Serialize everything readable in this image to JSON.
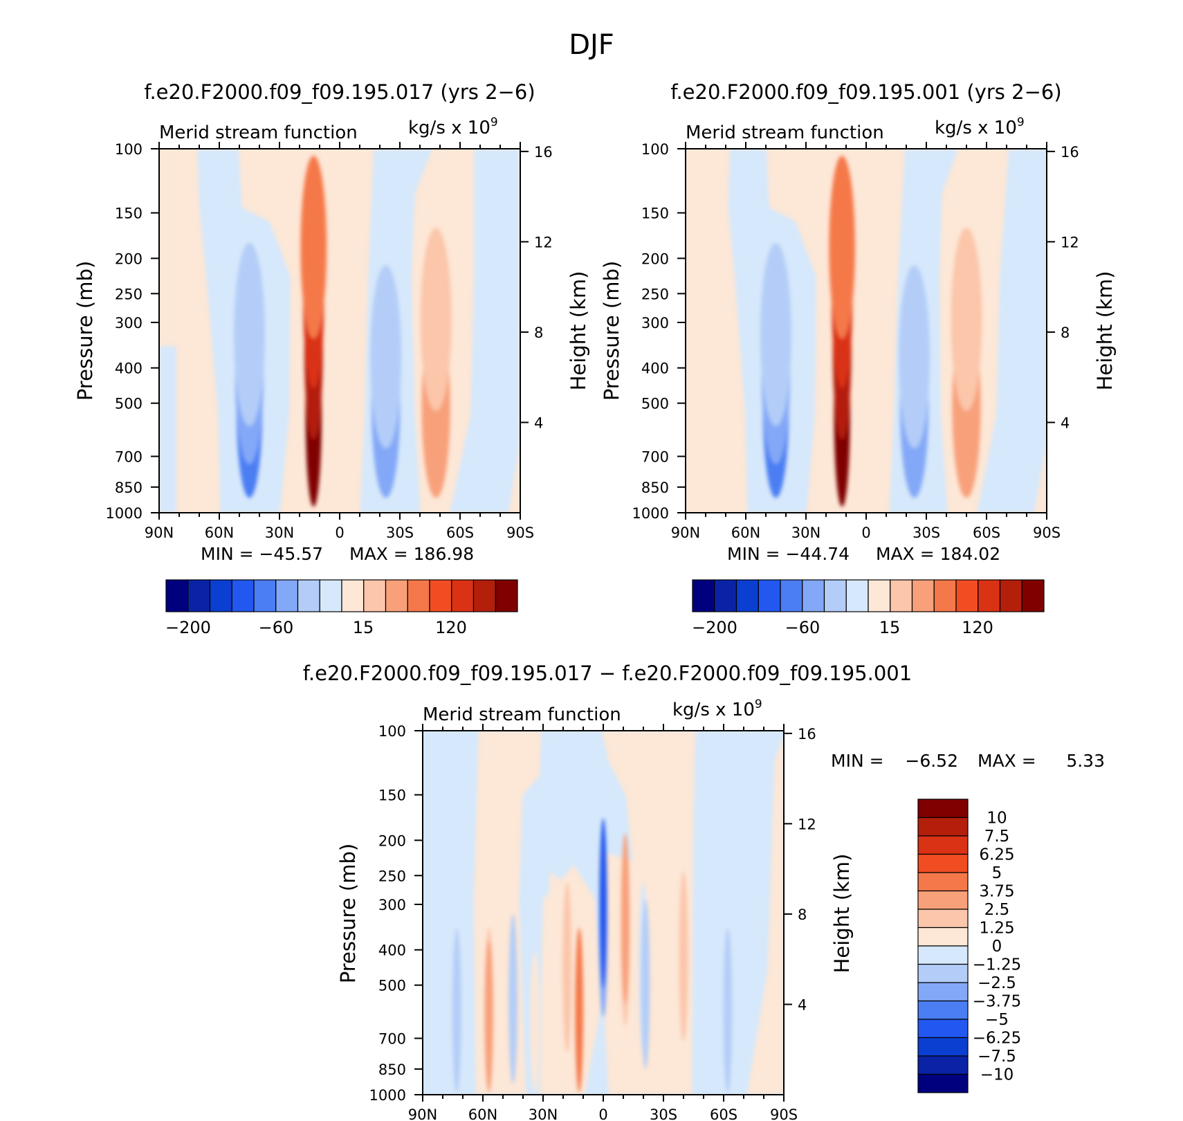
{
  "figure": {
    "title": "DJF"
  },
  "chart_data": [
    {
      "type": "heatmap",
      "panel": "left",
      "title": "f.e20.F2000.f09_f09.195.017 (yrs 2−6)",
      "subtitle": "Merid stream function",
      "units": "kg/s x 10",
      "units_exponent": "9",
      "xlabel": "",
      "ylabel": "Pressure (mb)",
      "y2label": "Height (km)",
      "x_ticks": [
        "90N",
        "60N",
        "30N",
        "0",
        "30S",
        "60S",
        "90S"
      ],
      "x_tick_values": [
        90,
        60,
        30,
        0,
        -30,
        -60,
        -90
      ],
      "y_ticks": [
        100,
        150,
        200,
        250,
        300,
        400,
        500,
        700,
        850,
        1000
      ],
      "y2_ticks": [
        16,
        12,
        8,
        4
      ],
      "ylim": [
        1000,
        100
      ],
      "xlim": [
        90,
        -90
      ],
      "yscale": "log",
      "min_label": "MIN = −45.57",
      "max_label": "MAX = 186.98",
      "min": -45.57,
      "max": 186.98,
      "colorbar_labels": [
        "−200",
        "−60",
        "15",
        "120"
      ],
      "cells": [
        {
          "lat": 45,
          "p": 520,
          "level": -4
        },
        {
          "lat": 45,
          "p": 420,
          "level": -3
        },
        {
          "lat": 45,
          "p": 330,
          "level": -2
        },
        {
          "lat": 13,
          "p": 550,
          "level": 8
        },
        {
          "lat": 13,
          "p": 360,
          "level": 7
        },
        {
          "lat": 13,
          "p": 260,
          "level": 6
        },
        {
          "lat": 13,
          "p": 190,
          "level": 4
        },
        {
          "lat": -23,
          "p": 520,
          "level": -3
        },
        {
          "lat": -23,
          "p": 380,
          "level": -2
        },
        {
          "lat": -48,
          "p": 520,
          "level": 3
        },
        {
          "lat": -48,
          "p": 300,
          "level": 2
        }
      ]
    },
    {
      "type": "heatmap",
      "panel": "right",
      "title": "f.e20.F2000.f09_f09.195.001 (yrs 2−6)",
      "subtitle": "Merid stream function",
      "units": "kg/s x 10",
      "units_exponent": "9",
      "xlabel": "",
      "ylabel": "Pressure (mb)",
      "y2label": "Height (km)",
      "x_ticks": [
        "90N",
        "60N",
        "30N",
        "0",
        "30S",
        "60S",
        "90S"
      ],
      "x_tick_values": [
        90,
        60,
        30,
        0,
        -30,
        -60,
        -90
      ],
      "y_ticks": [
        100,
        150,
        200,
        250,
        300,
        400,
        500,
        700,
        850,
        1000
      ],
      "y2_ticks": [
        16,
        12,
        8,
        4
      ],
      "ylim": [
        1000,
        100
      ],
      "xlim": [
        90,
        -90
      ],
      "yscale": "log",
      "min_label": "MIN = −44.74",
      "max_label": "MAX = 184.02",
      "min": -44.74,
      "max": 184.02,
      "colorbar_labels": [
        "−200",
        "−60",
        "15",
        "120"
      ],
      "cells": [
        {
          "lat": 45,
          "p": 520,
          "level": -4
        },
        {
          "lat": 45,
          "p": 420,
          "level": -3
        },
        {
          "lat": 45,
          "p": 330,
          "level": -2
        },
        {
          "lat": 12,
          "p": 550,
          "level": 8
        },
        {
          "lat": 12,
          "p": 360,
          "level": 7
        },
        {
          "lat": 12,
          "p": 260,
          "level": 6
        },
        {
          "lat": 12,
          "p": 190,
          "level": 4
        },
        {
          "lat": -24,
          "p": 520,
          "level": -3
        },
        {
          "lat": -24,
          "p": 380,
          "level": -2
        },
        {
          "lat": -50,
          "p": 520,
          "level": 3
        },
        {
          "lat": -50,
          "p": 300,
          "level": 2
        }
      ]
    },
    {
      "type": "heatmap",
      "panel": "difference",
      "title": "f.e20.F2000.f09_f09.195.017 − f.e20.F2000.f09_f09.195.001",
      "subtitle": "Merid stream function",
      "units": "kg/s x 10",
      "units_exponent": "9",
      "xlabel": "",
      "ylabel": "Pressure (mb)",
      "y2label": "Height (km)",
      "x_ticks": [
        "90N",
        "60N",
        "30N",
        "0",
        "30S",
        "60S",
        "90S"
      ],
      "x_tick_values": [
        90,
        60,
        30,
        0,
        -30,
        -60,
        -90
      ],
      "y_ticks": [
        100,
        150,
        200,
        250,
        300,
        400,
        500,
        700,
        850,
        1000
      ],
      "y2_ticks": [
        16,
        12,
        8,
        4
      ],
      "ylim": [
        1000,
        100
      ],
      "xlim": [
        90,
        -90
      ],
      "yscale": "log",
      "min_label": "MIN =",
      "min_value": "−6.52",
      "max_label": "MAX =",
      "max_value": "5.33",
      "min": -6.52,
      "max": 5.33,
      "colorbar_labels": [
        "10",
        "7.5",
        "6.25",
        "5",
        "3.75",
        "2.5",
        "1.25",
        "0",
        "−1.25",
        "−2.5",
        "−3.75",
        "−5",
        "−6.25",
        "−7.5",
        "−10"
      ],
      "cells": [
        {
          "lat": 73,
          "p": 520,
          "level": -1
        },
        {
          "lat": 73,
          "p": 600,
          "level": -2
        },
        {
          "lat": 57,
          "p": 600,
          "level": 2
        },
        {
          "lat": 57,
          "p": 650,
          "level": 3
        },
        {
          "lat": 45,
          "p": 550,
          "level": -2
        },
        {
          "lat": 34,
          "p": 700,
          "level": 1
        },
        {
          "lat": 18,
          "p": 450,
          "level": 2
        },
        {
          "lat": 12,
          "p": 600,
          "level": 4
        },
        {
          "lat": 0,
          "p": 360,
          "level": -3
        },
        {
          "lat": 0,
          "p": 300,
          "level": -5
        },
        {
          "lat": -11,
          "p": 380,
          "level": 2
        },
        {
          "lat": -11,
          "p": 330,
          "level": 3
        },
        {
          "lat": -20,
          "p": 450,
          "level": -1
        },
        {
          "lat": -21,
          "p": 500,
          "level": -2
        },
        {
          "lat": -40,
          "p": 420,
          "level": 2
        },
        {
          "lat": -60,
          "p": 500,
          "level": -1
        },
        {
          "lat": -62,
          "p": 600,
          "level": -2
        }
      ]
    }
  ],
  "palette": {
    "neg8": "#00007f",
    "neg7": "#0a23a6",
    "neg6": "#0b3fd2",
    "neg5": "#2358f0",
    "neg4": "#4b7ef3",
    "neg3": "#83a8f7",
    "neg2": "#b3cdf8",
    "neg1": "#d6e8fb",
    "pos1": "#fde7d6",
    "pos2": "#fbc6aa",
    "pos3": "#f8a07a",
    "pos4": "#f5784a",
    "pos5": "#f14d23",
    "pos6": "#da3214",
    "pos7": "#b41f0c",
    "pos8": "#800000"
  }
}
